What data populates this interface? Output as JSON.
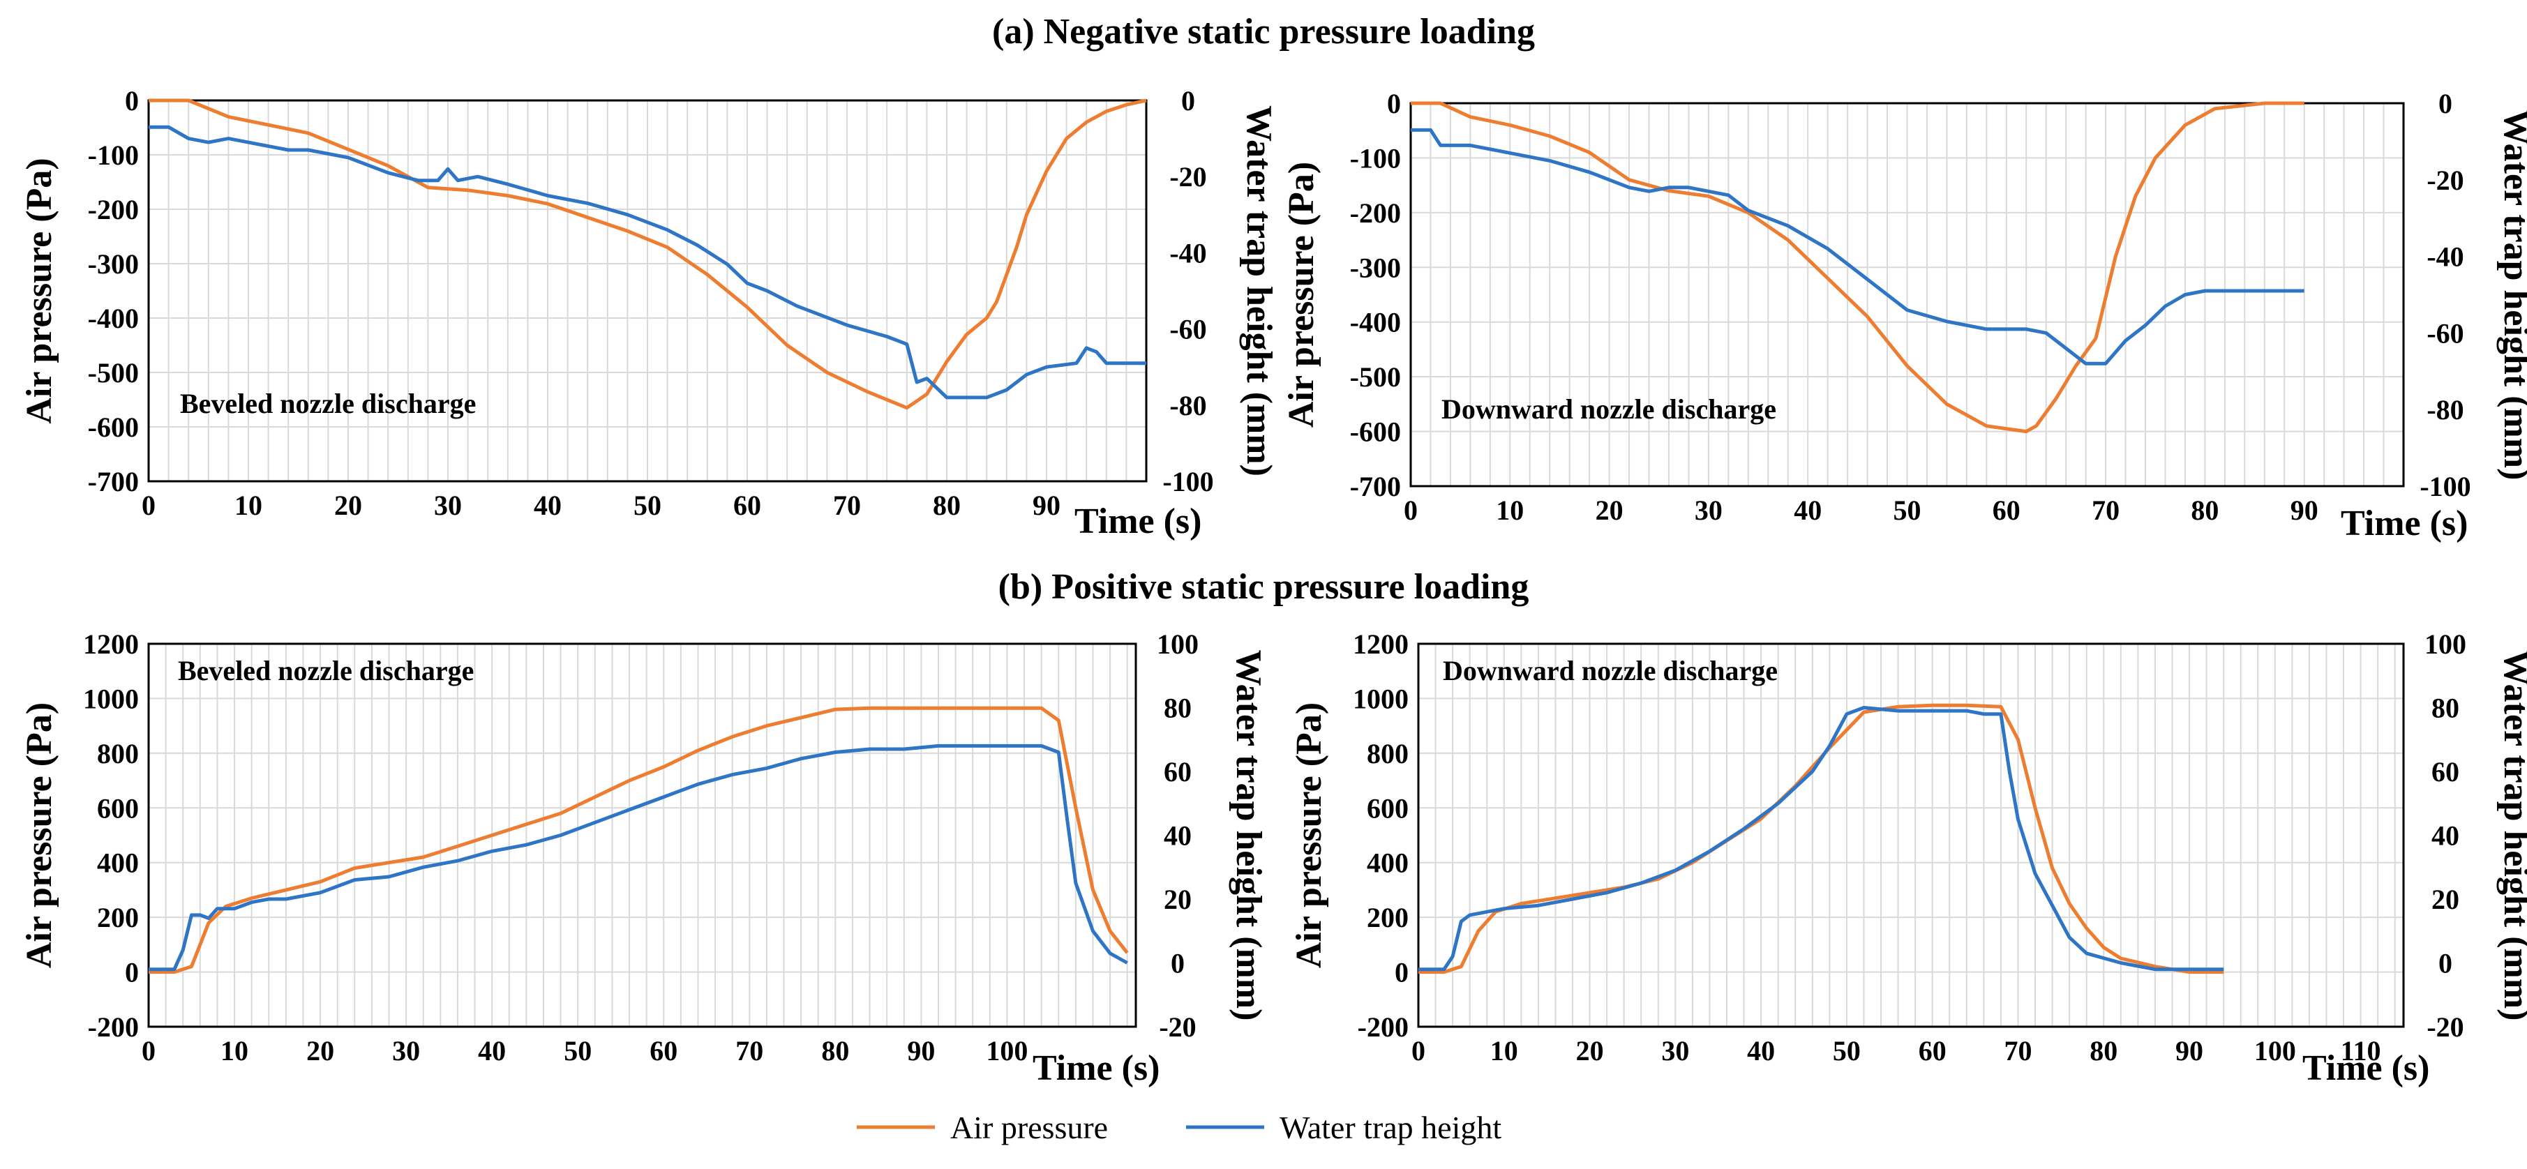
{
  "figure": {
    "section_a_title": "(a) Negative static pressure loading",
    "section_b_title": "(b) Positive static pressure loading",
    "legend": {
      "items": [
        {
          "label": "Air pressure",
          "color": "#ED7D31"
        },
        {
          "label": "Water trap height",
          "color": "#2E75C6"
        }
      ]
    }
  },
  "chart_data": [
    {
      "id": "a-beveled",
      "type": "line",
      "annotation": "Beveled nozzle discharge",
      "xlabel": "Time (s)",
      "ylabel": "Air pressure (Pa)",
      "y2label": "Water trap height (mm)",
      "xlim": [
        0,
        100
      ],
      "ylim": [
        -700,
        0
      ],
      "y2lim": [
        -100,
        0
      ],
      "xticks": [
        0,
        10,
        20,
        30,
        40,
        50,
        60,
        70,
        80,
        90
      ],
      "xtick_labels": [
        "0",
        "10",
        "20",
        "30",
        "40",
        "50",
        "60",
        "70",
        "80",
        "90"
      ],
      "yticks": [
        0,
        -100,
        -200,
        -300,
        -400,
        -500,
        -600,
        -700
      ],
      "ytick_labels": [
        "0",
        "-100",
        "-200",
        "-300",
        "-400",
        "-500",
        "-600",
        "-700"
      ],
      "y2ticks": [
        0,
        -20,
        -40,
        -60,
        -80,
        -100
      ],
      "y2tick_labels": [
        "0",
        "-20",
        "-40",
        "-60",
        "-80",
        "-100"
      ],
      "series": [
        {
          "name": "Air pressure",
          "axis": "left",
          "color": "#ED7D31",
          "x": [
            0,
            4,
            8,
            12,
            16,
            20,
            24,
            28,
            32,
            36,
            40,
            44,
            48,
            52,
            56,
            60,
            64,
            68,
            72,
            76,
            78,
            80,
            82,
            84,
            85,
            87,
            88,
            90,
            92,
            94,
            96,
            98,
            100
          ],
          "y": [
            0,
            0,
            -30,
            -45,
            -60,
            -90,
            -120,
            -160,
            -165,
            -175,
            -190,
            -215,
            -240,
            -270,
            -320,
            -380,
            -450,
            -500,
            -535,
            -565,
            -540,
            -480,
            -430,
            -400,
            -370,
            -270,
            -210,
            -130,
            -70,
            -40,
            -20,
            -8,
            0
          ]
        },
        {
          "name": "Water trap height",
          "axis": "right",
          "color": "#2E75C6",
          "x": [
            0,
            2,
            4,
            6,
            8,
            10,
            14,
            16,
            20,
            24,
            27,
            29,
            30,
            31,
            33,
            36,
            40,
            44,
            48,
            52,
            55,
            58,
            60,
            62,
            65,
            68,
            70,
            74,
            76,
            77,
            78,
            80,
            84,
            86,
            88,
            90,
            93,
            94,
            95,
            96,
            100
          ],
          "y": [
            -7,
            -7,
            -10,
            -11,
            -10,
            -11,
            -13,
            -13,
            -15,
            -19,
            -21,
            -21,
            -18,
            -21,
            -20,
            -22,
            -25,
            -27,
            -30,
            -34,
            -38,
            -43,
            -48,
            -50,
            -54,
            -57,
            -59,
            -62,
            -64,
            -74,
            -73,
            -78,
            -78,
            -76,
            -72,
            -70,
            -69,
            -65,
            -66,
            -69,
            -69
          ]
        }
      ]
    },
    {
      "id": "a-downward",
      "type": "line",
      "annotation": "Downward nozzle discharge",
      "xlabel": "Time (s)",
      "ylabel": "Air pressure (Pa)",
      "y2label": "Water trap height (mm)",
      "xlim": [
        0,
        100
      ],
      "ylim": [
        -700,
        0
      ],
      "y2lim": [
        -100,
        0
      ],
      "xticks": [
        0,
        10,
        20,
        30,
        40,
        50,
        60,
        70,
        80,
        90
      ],
      "xtick_labels": [
        "0",
        "10",
        "20",
        "30",
        "40",
        "50",
        "60",
        "70",
        "80",
        "90"
      ],
      "yticks": [
        0,
        -100,
        -200,
        -300,
        -400,
        -500,
        -600,
        -700
      ],
      "ytick_labels": [
        "0",
        "-100",
        "-200",
        "-300",
        "-400",
        "-500",
        "-600",
        "-700"
      ],
      "y2ticks": [
        0,
        -20,
        -40,
        -60,
        -80,
        -100
      ],
      "y2tick_labels": [
        "0",
        "-20",
        "-40",
        "-60",
        "-80",
        "-100"
      ],
      "series": [
        {
          "name": "Air pressure",
          "axis": "left",
          "color": "#ED7D31",
          "x": [
            0,
            3,
            6,
            10,
            14,
            18,
            22,
            26,
            30,
            34,
            38,
            42,
            46,
            50,
            54,
            58,
            62,
            63,
            65,
            67,
            69,
            71,
            73,
            75,
            78,
            81,
            86,
            90
          ],
          "y": [
            0,
            0,
            -25,
            -40,
            -60,
            -90,
            -140,
            -160,
            -170,
            -200,
            -250,
            -320,
            -390,
            -480,
            -550,
            -590,
            -600,
            -590,
            -540,
            -480,
            -430,
            -280,
            -170,
            -100,
            -40,
            -10,
            0,
            0
          ],
          "x_note": "x max for this chart uses the same 0-100 axis"
        },
        {
          "name": "Water trap height",
          "axis": "right",
          "color": "#2E75C6",
          "x": [
            0,
            2,
            3,
            6,
            10,
            14,
            18,
            22,
            24,
            26,
            28,
            30,
            32,
            34,
            38,
            42,
            46,
            50,
            54,
            58,
            62,
            64,
            66,
            68,
            70,
            72,
            74,
            76,
            78,
            80,
            84,
            90
          ],
          "y": [
            -7,
            -7,
            -11,
            -11,
            -13,
            -15,
            -18,
            -22,
            -23,
            -22,
            -22,
            -23,
            -24,
            -28,
            -32,
            -38,
            -46,
            -54,
            -57,
            -59,
            -59,
            -60,
            -64,
            -68,
            -68,
            -62,
            -58,
            -53,
            -50,
            -49,
            -49,
            -49
          ]
        }
      ]
    },
    {
      "id": "b-beveled",
      "type": "line",
      "annotation": "Beveled nozzle discharge",
      "xlabel": "Time (s)",
      "ylabel": "Air pressure (Pa)",
      "y2label": "Water trap height (mm)",
      "xlim": [
        0,
        115
      ],
      "ylim": [
        -200,
        1200
      ],
      "y2lim": [
        -20,
        100
      ],
      "xticks": [
        0,
        10,
        20,
        30,
        40,
        50,
        60,
        70,
        80,
        90,
        100
      ],
      "xtick_labels": [
        "0",
        "10",
        "20",
        "30",
        "40",
        "50",
        "60",
        "70",
        "80",
        "90",
        "100"
      ],
      "yticks": [
        1200,
        1000,
        800,
        600,
        400,
        200,
        0,
        -200
      ],
      "ytick_labels": [
        "1200",
        "1000",
        "800",
        "600",
        "400",
        "200",
        "0",
        "-200"
      ],
      "y2ticks": [
        100,
        80,
        60,
        40,
        20,
        0,
        -20
      ],
      "y2tick_labels": [
        "100",
        "80",
        "60",
        "40",
        "20",
        "0",
        "-20"
      ],
      "series": [
        {
          "name": "Air pressure",
          "axis": "left",
          "color": "#ED7D31",
          "x": [
            0,
            3,
            5,
            7,
            9,
            12,
            16,
            20,
            24,
            28,
            32,
            36,
            40,
            44,
            48,
            52,
            56,
            60,
            64,
            68,
            72,
            76,
            80,
            84,
            88,
            92,
            96,
            100,
            104,
            106,
            108,
            110,
            112,
            114
          ],
          "y": [
            0,
            0,
            20,
            180,
            240,
            270,
            300,
            330,
            380,
            400,
            420,
            460,
            500,
            540,
            580,
            640,
            700,
            750,
            810,
            860,
            900,
            930,
            960,
            965,
            965,
            965,
            965,
            965,
            965,
            920,
            600,
            300,
            150,
            70
          ]
        },
        {
          "name": "Water trap height",
          "axis": "right",
          "color": "#2E75C6",
          "x": [
            0,
            2,
            3,
            4,
            5,
            6,
            7,
            8,
            10,
            12,
            14,
            16,
            20,
            24,
            28,
            32,
            36,
            40,
            44,
            48,
            52,
            56,
            60,
            64,
            68,
            72,
            76,
            80,
            84,
            88,
            92,
            96,
            100,
            104,
            106,
            107,
            108,
            110,
            112,
            114
          ],
          "y": [
            -2,
            -2,
            -2,
            4,
            15,
            15,
            14,
            17,
            17,
            19,
            20,
            20,
            22,
            26,
            27,
            30,
            32,
            35,
            37,
            40,
            44,
            48,
            52,
            56,
            59,
            61,
            64,
            66,
            67,
            67,
            68,
            68,
            68,
            68,
            66,
            45,
            25,
            10,
            3,
            0
          ]
        }
      ]
    },
    {
      "id": "b-downward",
      "type": "line",
      "annotation": "Downward nozzle discharge",
      "xlabel": "Time (s)",
      "ylabel": "Air pressure (Pa)",
      "y2label": "Water trap height (mm)",
      "xlim": [
        0,
        115
      ],
      "ylim": [
        -200,
        1200
      ],
      "y2lim": [
        -20,
        100
      ],
      "xticks": [
        0,
        10,
        20,
        30,
        40,
        50,
        60,
        70,
        80,
        90,
        100,
        110
      ],
      "xtick_labels": [
        "0",
        "10",
        "20",
        "30",
        "40",
        "50",
        "60",
        "70",
        "80",
        "90",
        "100",
        "110"
      ],
      "yticks": [
        1200,
        1000,
        800,
        600,
        400,
        200,
        0,
        -200
      ],
      "ytick_labels": [
        "1200",
        "1000",
        "800",
        "600",
        "400",
        "200",
        "0",
        "-200"
      ],
      "y2ticks": [
        100,
        80,
        60,
        40,
        20,
        0,
        -20
      ],
      "y2tick_labels": [
        "100",
        "80",
        "60",
        "40",
        "20",
        "0",
        "-20"
      ],
      "series": [
        {
          "name": "Air pressure",
          "axis": "left",
          "color": "#ED7D31",
          "x": [
            0,
            3,
            5,
            7,
            9,
            12,
            16,
            20,
            24,
            28,
            32,
            36,
            40,
            44,
            48,
            52,
            56,
            60,
            64,
            68,
            70,
            72,
            74,
            76,
            78,
            80,
            82,
            86,
            90,
            94
          ],
          "y": [
            0,
            0,
            20,
            150,
            220,
            250,
            270,
            290,
            310,
            340,
            400,
            480,
            560,
            680,
            820,
            950,
            970,
            975,
            975,
            970,
            850,
            600,
            380,
            250,
            160,
            90,
            50,
            20,
            0,
            0
          ]
        },
        {
          "name": "Water trap height",
          "axis": "right",
          "color": "#2E75C6",
          "x": [
            0,
            2,
            3,
            4,
            5,
            6,
            8,
            10,
            14,
            18,
            22,
            26,
            30,
            34,
            38,
            42,
            46,
            48,
            50,
            52,
            56,
            60,
            64,
            66,
            68,
            69,
            70,
            72,
            74,
            76,
            78,
            82,
            86,
            90,
            94
          ],
          "y": [
            -2,
            -2,
            -2,
            2,
            13,
            15,
            16,
            17,
            18,
            20,
            22,
            25,
            29,
            35,
            42,
            50,
            60,
            68,
            78,
            80,
            79,
            79,
            79,
            78,
            78,
            60,
            45,
            28,
            18,
            8,
            3,
            0,
            -2,
            -2,
            -2
          ]
        }
      ]
    }
  ]
}
